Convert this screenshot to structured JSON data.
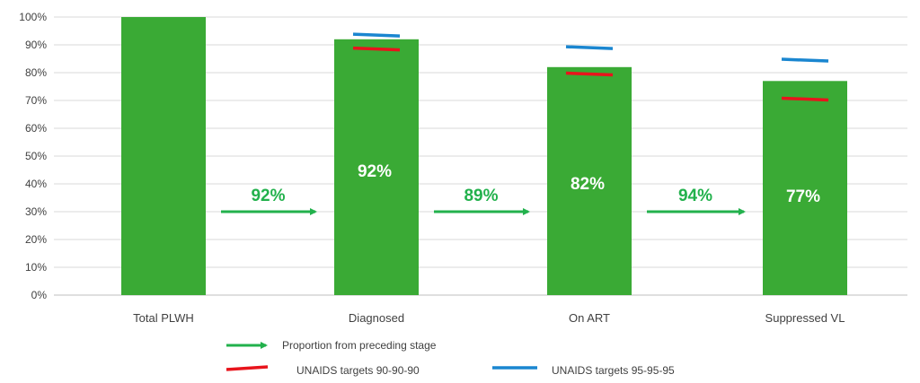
{
  "chart_data": {
    "type": "bar",
    "categories": [
      "Total PLWH",
      "Diagnosed",
      "On ART",
      "Suppressed VL"
    ],
    "values": [
      100,
      92,
      82,
      77
    ],
    "data_labels": [
      "",
      "92%",
      "82%",
      "77%"
    ],
    "ylim": [
      0,
      100
    ],
    "yticks": [
      0,
      10,
      20,
      30,
      40,
      50,
      60,
      70,
      80,
      90,
      100
    ],
    "ytick_labels": [
      "0%",
      "10%",
      "20%",
      "30%",
      "40%",
      "50%",
      "60%",
      "70%",
      "80%",
      "90%",
      "100%"
    ],
    "grid": true,
    "bar_color": "#3aaa35",
    "unaids_90_targets": [
      null,
      88.5,
      79.5,
      70.5
    ],
    "unaids_95_targets": [
      null,
      93.5,
      89,
      84.5
    ],
    "target_90_color": "#e8141c",
    "target_95_color": "#1a86d0",
    "arrow_color": "#22b14c",
    "conversion_labels": [
      "92%",
      "89%",
      "94%"
    ],
    "legend": {
      "placement": "bottom",
      "arrow_label": "Proportion from preceding stage",
      "target_90_label": "UNAIDS targets 90-90-90",
      "target_95_label": "UNAIDS targets 95-95-95"
    }
  }
}
